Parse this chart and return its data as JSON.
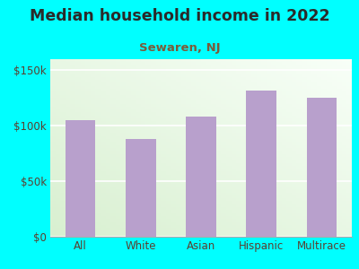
{
  "title": "Median household income in 2022",
  "subtitle": "Sewaren, NJ",
  "categories": [
    "All",
    "White",
    "Asian",
    "Hispanic",
    "Multirace"
  ],
  "values": [
    105000,
    88000,
    108000,
    132000,
    125000
  ],
  "bar_color": "#b8a0cc",
  "background_outer": "#00FFFF",
  "background_inner_top_left": "#d8efd0",
  "background_inner_bottom_right": "#f8fff8",
  "title_color": "#2a2a2a",
  "subtitle_color": "#7a5c3a",
  "tick_label_color": "#5a4030",
  "ylim": [
    0,
    160000
  ],
  "yticks": [
    0,
    50000,
    100000,
    150000
  ],
  "ytick_labels": [
    "$0",
    "$50k",
    "$100k",
    "$150k"
  ],
  "title_fontsize": 12.5,
  "subtitle_fontsize": 9.5,
  "tick_fontsize": 8.5,
  "grid_color": "#e0e8e0",
  "spine_color": "#aaaaaa"
}
